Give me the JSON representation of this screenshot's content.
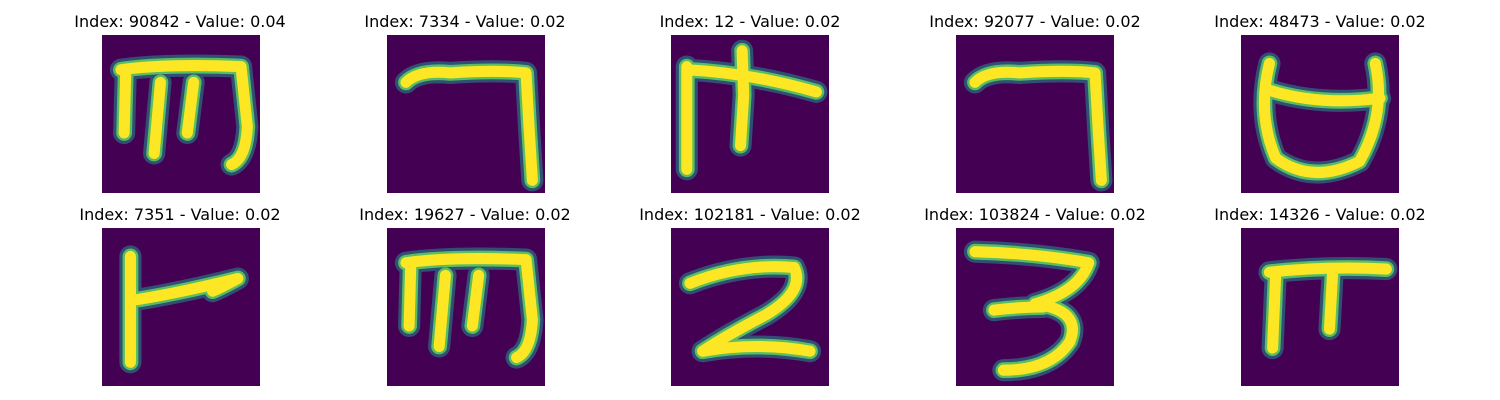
{
  "colors": {
    "background": "#440154",
    "mid": "#21908d",
    "stroke": "#fde725",
    "edge": "#5ec962"
  },
  "panels": [
    {
      "title": "Index: 90842 - Value: 0.04",
      "glyph": "m"
    },
    {
      "title": "Index: 7334 - Value: 0.02",
      "glyph": "seven"
    },
    {
      "title": "Index: 12 - Value: 0.02",
      "glyph": "cross"
    },
    {
      "title": "Index: 92077 - Value: 0.02",
      "glyph": "seven"
    },
    {
      "title": "Index: 48473 - Value: 0.02",
      "glyph": "cup"
    },
    {
      "title": "Index: 7351 - Value: 0.02",
      "glyph": "flag"
    },
    {
      "title": "Index: 19627 - Value: 0.02",
      "glyph": "m"
    },
    {
      "title": "Index: 102181 - Value: 0.02",
      "glyph": "two"
    },
    {
      "title": "Index: 103824 - Value: 0.02",
      "glyph": "three"
    },
    {
      "title": "Index: 14326 - Value: 0.02",
      "glyph": "pi"
    }
  ]
}
